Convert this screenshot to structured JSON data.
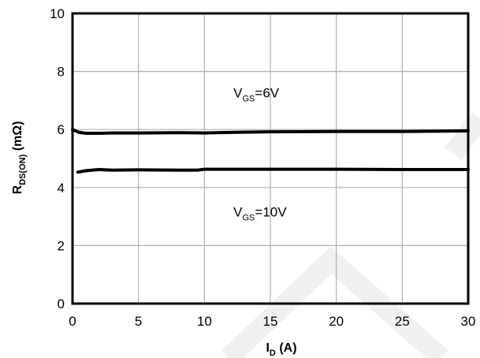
{
  "chart_data": {
    "type": "line",
    "xlabel": {
      "main": "I",
      "sub": "D",
      "tail": " (A)"
    },
    "ylabel": {
      "main": "R",
      "sub": "DS(ON)",
      "tail": " (mΩ)"
    },
    "xlim": [
      0,
      30
    ],
    "ylim": [
      0,
      10
    ],
    "x_ticks": [
      0,
      5,
      10,
      15,
      20,
      25,
      30
    ],
    "y_ticks": [
      0,
      2,
      4,
      6,
      8,
      10
    ],
    "grid": true,
    "series": [
      {
        "x": [
          0,
          0.5,
          1,
          2,
          3,
          5,
          8,
          10,
          12,
          15,
          20,
          25,
          30
        ],
        "y": [
          6.0,
          5.9,
          5.87,
          5.87,
          5.88,
          5.88,
          5.89,
          5.88,
          5.9,
          5.92,
          5.93,
          5.93,
          5.95
        ]
      },
      {
        "x": [
          0.4,
          1,
          2,
          3,
          5,
          8,
          9.5,
          10,
          12,
          15,
          20,
          25,
          30
        ],
        "y": [
          4.53,
          4.58,
          4.62,
          4.6,
          4.61,
          4.6,
          4.6,
          4.63,
          4.63,
          4.63,
          4.63,
          4.62,
          4.62
        ]
      }
    ],
    "annotations": [
      {
        "main": "V",
        "sub": "GS",
        "tail": "=6V",
        "x": 12.2,
        "y": 7.1
      },
      {
        "main": "V",
        "sub": "GS",
        "tail": "=10V",
        "x": 12.2,
        "y": 3.0
      }
    ]
  }
}
